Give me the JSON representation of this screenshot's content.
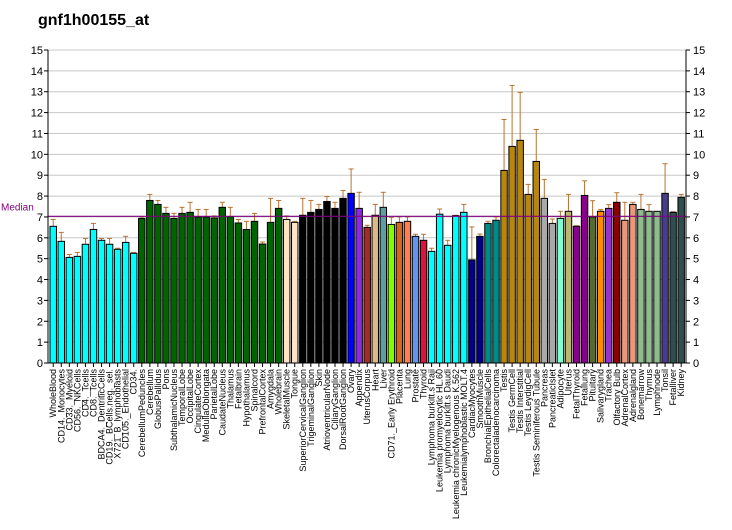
{
  "chart_data": {
    "type": "bar",
    "title": "gnf1h00155_at",
    "xlabel": "",
    "ylabel": "",
    "ylim": [
      0,
      15
    ],
    "yticks": [
      0,
      1,
      2,
      3,
      4,
      5,
      6,
      7,
      8,
      9,
      10,
      11,
      12,
      13,
      14,
      15
    ],
    "grid": true,
    "median": {
      "label": "Median",
      "value": 7.03,
      "color": "#800080"
    },
    "categories": [
      "WholeBlood",
      "CD14._Monocytes",
      "CD33._Myeloid",
      "CD56._NKCells",
      "CD4._Tcells",
      "CD8._Tcells",
      "BDCA4._DentriticCells",
      "CD19._BCells.neg._sel.",
      "X721_B_lymphoblasts",
      "CD105._Endothelial",
      "CD34.",
      "CerebellumPeduncles",
      "Cerebellum",
      "GlobusPallidus",
      "Pons",
      "SubthalamicNucleus",
      "TemporalLobe",
      "OccipitalLobe",
      "CingulateCortex",
      "MedullaOblongata",
      "ParietalLobe",
      "CaudateNucleus",
      "Thalamus",
      "Fetalbrain",
      "Hypothalamus",
      "Spinalcord",
      "PrefrontalCortex",
      "Amygdala",
      "Wholebrain",
      "SkeletalMuscle",
      "Tongue",
      "SuperiorCervicalGanglion",
      "TrigeminalGanglion",
      "Skin",
      "AtrioventricularNode",
      "CiliaryGanglion",
      "DorsalRootGanglion",
      "Ovary",
      "Appendix",
      "UterusCorpus",
      "Heart",
      "Liver",
      "CD71._Early Erythroid",
      "Placenta",
      "Lung",
      "Prostate",
      "Thyroid",
      "Lymphoma burkitt.s Raji",
      "Leukemia promyelocytic HL.60",
      "Lymphoma burkitt.s Daudi",
      "Leukemia chronicMyelogenous K.562",
      "Leukemialymphoblastic MOLT.4",
      "CardiacMyocytes",
      "SmoothMuscle",
      "BronchialEpithelialCells",
      "Colorectaladenocarcinoma",
      "Testis",
      "Testis GermCell",
      "Testis Interstitial",
      "Testis LeydigCell",
      "Testis Seminiferous Tubule",
      "Pancreas",
      "PancreaticIslet",
      "Adipocyte",
      "Uterus",
      "FetalThyroid",
      "Fetallung",
      "Pituitary",
      "Salivarygland",
      "Trachea",
      "Olfactory Bulb",
      "AdrenalCortex",
      "Adrenalgland",
      "Bonemarrow",
      "Thymus",
      "Lymphnode",
      "Tonsil",
      "Fetalliver",
      "Kidney"
    ],
    "values": [
      6.55,
      5.83,
      5.06,
      5.11,
      5.69,
      6.4,
      5.88,
      5.69,
      5.45,
      5.78,
      5.26,
      6.93,
      7.79,
      7.6,
      7.17,
      6.93,
      7.17,
      7.22,
      7.0,
      7.0,
      6.95,
      7.46,
      7.01,
      6.71,
      6.4,
      6.79,
      5.7,
      6.74,
      7.41,
      6.88,
      6.74,
      7.08,
      7.22,
      7.36,
      7.74,
      7.41,
      7.89,
      8.13,
      7.41,
      6.5,
      7.08,
      7.46,
      6.64,
      6.74,
      6.79,
      6.07,
      5.88,
      5.35,
      7.13,
      5.64,
      7.06,
      7.22,
      4.94,
      6.07,
      6.69,
      6.84,
      9.23,
      10.38,
      10.67,
      8.08,
      9.66,
      7.89,
      6.69,
      6.93,
      7.27,
      6.55,
      8.03,
      7.0,
      7.27,
      7.41,
      7.7,
      6.84,
      7.6,
      7.36,
      7.27,
      7.27,
      8.13,
      7.22,
      7.94
    ],
    "error_upper": [
      6.88,
      6.26,
      5.2,
      5.3,
      5.97,
      6.69,
      5.97,
      5.97,
      5.5,
      6.07,
      5.3,
      7.0,
      8.08,
      7.79,
      7.46,
      7.17,
      7.46,
      7.7,
      7.36,
      7.36,
      7.05,
      7.7,
      7.46,
      6.88,
      6.79,
      7.17,
      5.8,
      7.89,
      7.79,
      7.05,
      6.79,
      7.89,
      7.79,
      7.6,
      7.98,
      7.7,
      8.27,
      9.3,
      8.18,
      6.6,
      7.6,
      8.18,
      6.98,
      7.0,
      7.0,
      6.17,
      6.17,
      5.5,
      7.38,
      5.88,
      7.08,
      7.6,
      6.52,
      6.18,
      6.79,
      7.0,
      11.67,
      13.3,
      12.97,
      8.56,
      11.19,
      8.8,
      6.9,
      7.27,
      8.08,
      6.58,
      8.73,
      7.78,
      7.35,
      7.59,
      8.16,
      7.7,
      7.7,
      8.08,
      7.59,
      7.27,
      9.55,
      7.25,
      8.08
    ],
    "colors": [
      "#00FFFF",
      "#00FFFF",
      "#00FFFF",
      "#00FFFF",
      "#00FFFF",
      "#00FFFF",
      "#00FFFF",
      "#00FFFF",
      "#00FFFF",
      "#00FFFF",
      "#00FFFF",
      "#006400",
      "#006400",
      "#006400",
      "#006400",
      "#006400",
      "#006400",
      "#006400",
      "#006400",
      "#006400",
      "#006400",
      "#006400",
      "#006400",
      "#006400",
      "#006400",
      "#006400",
      "#006400",
      "#006400",
      "#006400",
      "#FFE4C4",
      "#FFE4C4",
      "#000000",
      "#000000",
      "#000000",
      "#000000",
      "#000000",
      "#000000",
      "#0000FF",
      "#8A2BE2",
      "#A52A2A",
      "#DEB887",
      "#5F9EA0",
      "#7FFF00",
      "#D2691E",
      "#FF7F50",
      "#6495ED",
      "#DC143C",
      "#00FFFF",
      "#00FFFF",
      "#00FFFF",
      "#00FFFF",
      "#00FFFF",
      "#00008B",
      "#00008B",
      "#008B8B",
      "#008B8B",
      "#B8860B",
      "#B8860B",
      "#B8860B",
      "#B8860B",
      "#B8860B",
      "#A9A9A9",
      "#A9A9A9",
      "#7FFFD4",
      "#BDB76B",
      "#8B008B",
      "#8B008B",
      "#556B2F",
      "#FF8C00",
      "#9932CC",
      "#8B0000",
      "#E9967A",
      "#E9967A",
      "#8FBC8F",
      "#8FBC8F",
      "#8FBC8F",
      "#483D8B",
      "#2F4F4F",
      "#2F4F4F"
    ],
    "error_color": "#B87333"
  }
}
